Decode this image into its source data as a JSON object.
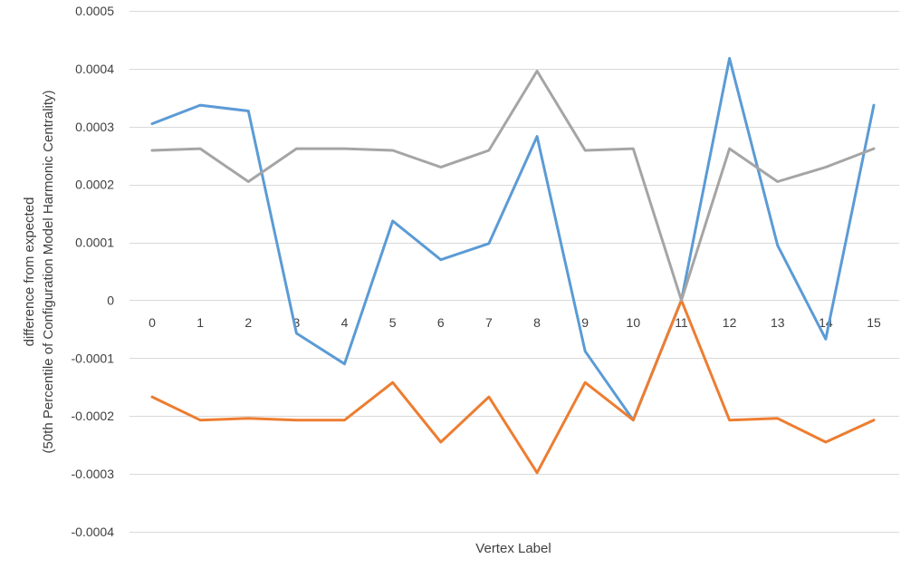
{
  "chart_data": {
    "type": "line",
    "title": "",
    "xlabel": "Vertex Label",
    "ylabel_lines": [
      "difference from expected",
      "(50th Percentile of Configuration Model Harmonic Centrality)"
    ],
    "categories": [
      "0",
      "1",
      "2",
      "3",
      "4",
      "5",
      "6",
      "7",
      "8",
      "9",
      "10",
      "11",
      "12",
      "13",
      "14",
      "15"
    ],
    "ylim": [
      -0.0004,
      0.0005
    ],
    "yticks": [
      0.0005,
      0.0004,
      0.0003,
      0.0002,
      0.0001,
      0,
      -0.0001,
      -0.0002,
      -0.0003,
      -0.0004
    ],
    "ytick_labels": [
      "0.0005",
      "0.0004",
      "0.0003",
      "0.0002",
      "0.0001",
      "0",
      "-0.0001",
      "-0.0002",
      "-0.0003",
      "-0.0004"
    ],
    "grid": true,
    "legend": "none",
    "series": [
      {
        "color": "#5b9bd5",
        "values": [
          0.000305,
          0.000337,
          0.000327,
          -5.7e-05,
          -0.00011,
          0.000137,
          7e-05,
          9.8e-05,
          0.000283,
          -8.8e-05,
          -0.000207,
          0.0,
          0.000418,
          9.5e-05,
          -6.7e-05,
          0.000337
        ]
      },
      {
        "color": "#ed7d31",
        "values": [
          -0.000167,
          -0.000207,
          -0.000204,
          -0.000207,
          -0.000207,
          -0.000142,
          -0.000245,
          -0.000167,
          -0.000298,
          -0.000142,
          -0.000207,
          0.0,
          -0.000207,
          -0.000204,
          -0.000245,
          -0.000207
        ]
      },
      {
        "color": "#a5a5a5",
        "values": [
          0.000259,
          0.000262,
          0.000205,
          0.000262,
          0.000262,
          0.000259,
          0.00023,
          0.000259,
          0.000396,
          0.000259,
          0.000262,
          0.0,
          0.000262,
          0.000205,
          0.00023,
          0.000262
        ]
      }
    ]
  }
}
